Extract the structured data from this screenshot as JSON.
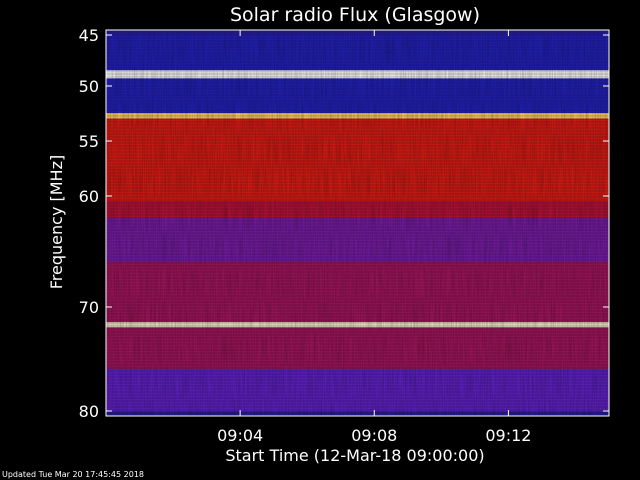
{
  "chart_data": {
    "type": "heatmap",
    "title": "Solar radio Flux (Glasgow)",
    "xlabel": "Start Time (12-Mar-18 09:00:00)",
    "ylabel": "Frequency [MHz]",
    "y_ticks": [
      "45",
      "50",
      "55",
      "60",
      "70",
      "80"
    ],
    "x_ticks": [
      "09:04",
      "09:08",
      "09:12"
    ],
    "x_tick_minutes": [
      4,
      8,
      12
    ],
    "x_range_minutes": [
      0,
      15
    ],
    "ylim_mhz": [
      45,
      80
    ],
    "colormap": [
      "#1a1f9e",
      "#3b2aff",
      "#8a1a8f",
      "#d11010",
      "#ff3a1a",
      "#ffd24a",
      "#ffffff"
    ],
    "bands": [
      {
        "from_mhz": 45.0,
        "to_mhz": 48.5,
        "level": 0.05
      },
      {
        "from_mhz": 48.5,
        "to_mhz": 49.3,
        "level": 1.0
      },
      {
        "from_mhz": 49.3,
        "to_mhz": 52.5,
        "level": 0.05
      },
      {
        "from_mhz": 52.5,
        "to_mhz": 53.0,
        "level": 0.85
      },
      {
        "from_mhz": 53.0,
        "to_mhz": 60.5,
        "level": 0.55
      },
      {
        "from_mhz": 60.5,
        "to_mhz": 62.0,
        "level": 0.45
      },
      {
        "from_mhz": 62.0,
        "to_mhz": 66.0,
        "level": 0.3
      },
      {
        "from_mhz": 66.0,
        "to_mhz": 71.5,
        "level": 0.4
      },
      {
        "from_mhz": 71.5,
        "to_mhz": 72.0,
        "level": 0.95
      },
      {
        "from_mhz": 72.0,
        "to_mhz": 76.0,
        "level": 0.4
      },
      {
        "from_mhz": 76.0,
        "to_mhz": 80.0,
        "level": 0.25
      }
    ]
  },
  "footer": "Updated Tue Mar 20 17:45:45 2018"
}
